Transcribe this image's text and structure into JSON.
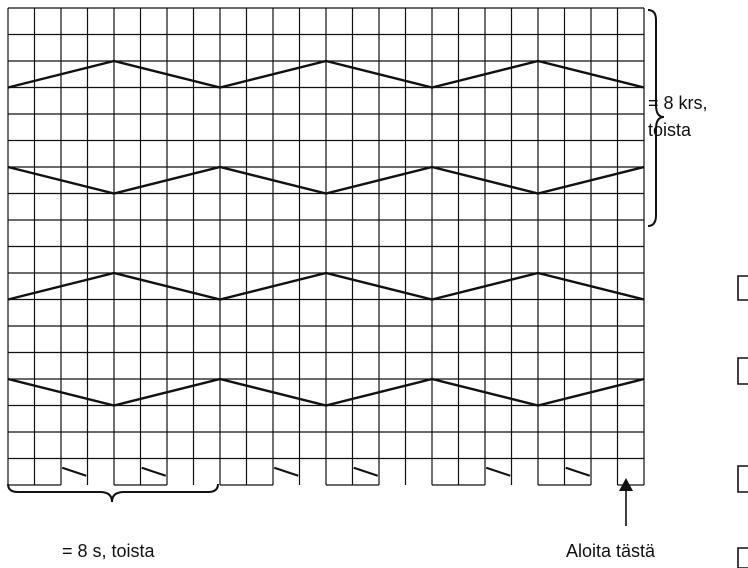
{
  "chart": {
    "columns": 24,
    "rows": 18,
    "line_color": "#111111",
    "background": "#ffffff"
  },
  "annotations": {
    "repeat_rows_line1": "= 8 krs,",
    "repeat_rows_line2": "toista",
    "repeat_stitches": "= 8 s, toista",
    "start_here": "Aloita tästä"
  }
}
